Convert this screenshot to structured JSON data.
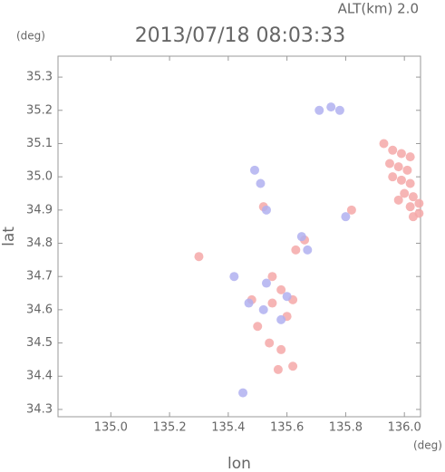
{
  "chart_data": {
    "type": "scatter",
    "title": "2013/07/18 08:03:33",
    "subtitle": "ALT(km) 2.0",
    "y_unit": "(deg)",
    "x_unit": "(deg)",
    "xlabel": "lon",
    "ylabel": "lat",
    "xlim": [
      134.82,
      136.055
    ],
    "ylim": [
      34.278,
      35.363
    ],
    "xticks": [
      {
        "value": 135.0,
        "label": "135.0"
      },
      135.2,
      135.4,
      135.6,
      135.8,
      {
        "value": 136.0,
        "label": "136.0"
      }
    ],
    "yticks": [
      34.3,
      34.4,
      34.5,
      34.6,
      34.7,
      34.8,
      34.9,
      {
        "value": 35.0,
        "label": "35.0"
      },
      35.1,
      35.2,
      35.3
    ],
    "series": [
      {
        "color": "#f5a8a8",
        "x": [
          135.93,
          135.96,
          135.99,
          136.02,
          135.95,
          135.98,
          136.01,
          135.96,
          135.99,
          136.02,
          136.0,
          136.03,
          136.05,
          136.02,
          136.05,
          136.03,
          135.98,
          135.55,
          135.6,
          135.58,
          135.5,
          135.54,
          135.62,
          135.57,
          135.58,
          135.66,
          135.63,
          135.48,
          135.62,
          135.52,
          135.3,
          135.82,
          135.55
        ],
        "values": [
          35.1,
          35.08,
          35.07,
          35.06,
          35.04,
          35.03,
          35.02,
          35.0,
          34.99,
          34.98,
          34.95,
          34.94,
          34.92,
          34.91,
          34.89,
          34.88,
          34.93,
          34.62,
          34.58,
          34.66,
          34.55,
          34.5,
          34.43,
          34.42,
          34.48,
          34.81,
          34.78,
          34.63,
          34.63,
          34.91,
          34.76,
          34.9,
          34.7
        ]
      },
      {
        "color": "#b0b0f0",
        "x": [
          135.75,
          135.71,
          135.78,
          135.49,
          135.51,
          135.53,
          135.65,
          135.53,
          135.52,
          135.58,
          135.6,
          135.47,
          135.67,
          135.8,
          135.45,
          135.42
        ],
        "values": [
          35.21,
          35.2,
          35.2,
          35.02,
          34.98,
          34.9,
          34.82,
          34.68,
          34.6,
          34.57,
          34.64,
          34.62,
          34.78,
          34.88,
          34.35,
          34.7
        ]
      }
    ]
  }
}
